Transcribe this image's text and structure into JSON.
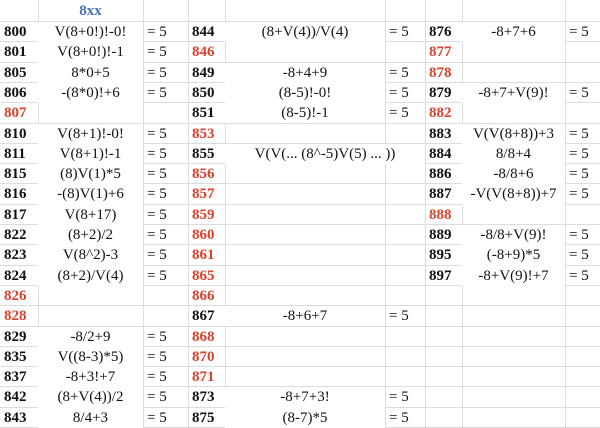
{
  "header": {
    "title": "8xx"
  },
  "table": {
    "columns": [
      {
        "rows": [
          [
            "800",
            "V(8+0!)!-0!",
            "= 5"
          ],
          [
            "801",
            "V(8+0!)!-1",
            "= 5"
          ],
          [
            "805",
            "8*0+5",
            "= 5"
          ],
          [
            "806",
            "-(8*0)!+6",
            "= 5"
          ],
          [
            "807",
            null,
            null
          ],
          [
            "810",
            "V(8+1)!-0!",
            "= 5"
          ],
          [
            "811",
            "V(8+1)!-1",
            "= 5"
          ],
          [
            "815",
            "(8)V(1)*5",
            "= 5"
          ],
          [
            "816",
            "-(8)V(1)+6",
            "= 5"
          ],
          [
            "817",
            "V(8+17)",
            "= 5"
          ],
          [
            "822",
            "(8+2)/2",
            "= 5"
          ],
          [
            "823",
            "V(8^2)-3",
            "= 5"
          ],
          [
            "824",
            "(8+2)/V(4)",
            "= 5"
          ],
          [
            "826",
            null,
            null
          ],
          [
            "828",
            null,
            null
          ],
          [
            "829",
            "-8/2+9",
            "= 5"
          ],
          [
            "835",
            "V((8-3)*5)",
            "= 5"
          ],
          [
            "837",
            "-8+3!+7",
            "= 5"
          ],
          [
            "842",
            "(8+V(4))/2",
            "= 5"
          ],
          [
            "843",
            "8/4+3",
            "= 5"
          ]
        ]
      },
      {
        "rows": [
          [
            "844",
            "(8+V(4))/V(4)",
            "= 5"
          ],
          [
            "846",
            null,
            null
          ],
          [
            "849",
            "-8+4+9",
            "= 5"
          ],
          [
            "850",
            "(8-5)!-0!",
            "= 5"
          ],
          [
            "851",
            "(8-5)!-1",
            "= 5"
          ],
          [
            "853",
            null,
            null
          ],
          [
            "855",
            "V(V(... (8^-5)V(5) ... ))",
            null
          ],
          [
            "856",
            null,
            null
          ],
          [
            "857",
            null,
            null
          ],
          [
            "859",
            null,
            null
          ],
          [
            "860",
            null,
            null
          ],
          [
            "861",
            null,
            null
          ],
          [
            "865",
            null,
            null
          ],
          [
            "866",
            null,
            null
          ],
          [
            "867",
            "-8+6+7",
            "= 5"
          ],
          [
            "868",
            null,
            null
          ],
          [
            "870",
            null,
            null
          ],
          [
            "871",
            null,
            null
          ],
          [
            "873",
            "-8+7+3!",
            "= 5"
          ],
          [
            "875",
            "(8-7)*5",
            "= 5"
          ]
        ]
      },
      {
        "rows": [
          [
            "876",
            "-8+7+6",
            "= 5"
          ],
          [
            "877",
            null,
            null
          ],
          [
            "878",
            null,
            null
          ],
          [
            "879",
            "-8+7+V(9)!",
            "= 5"
          ],
          [
            "882",
            null,
            null
          ],
          [
            "883",
            "V(V(8+8))+3",
            "= 5"
          ],
          [
            "884",
            "8/8+4",
            "= 5"
          ],
          [
            "886",
            "-8/8+6",
            "= 5"
          ],
          [
            "887",
            "-V(V(8+8))+7",
            "= 5"
          ],
          [
            "888",
            null,
            null
          ],
          [
            "889",
            "-8/8+V(9)!",
            "= 5"
          ],
          [
            "895",
            "(-8+9)*5",
            "= 5"
          ],
          [
            "897",
            "-8+V(9)!+7",
            "= 5"
          ]
        ]
      }
    ]
  }
}
